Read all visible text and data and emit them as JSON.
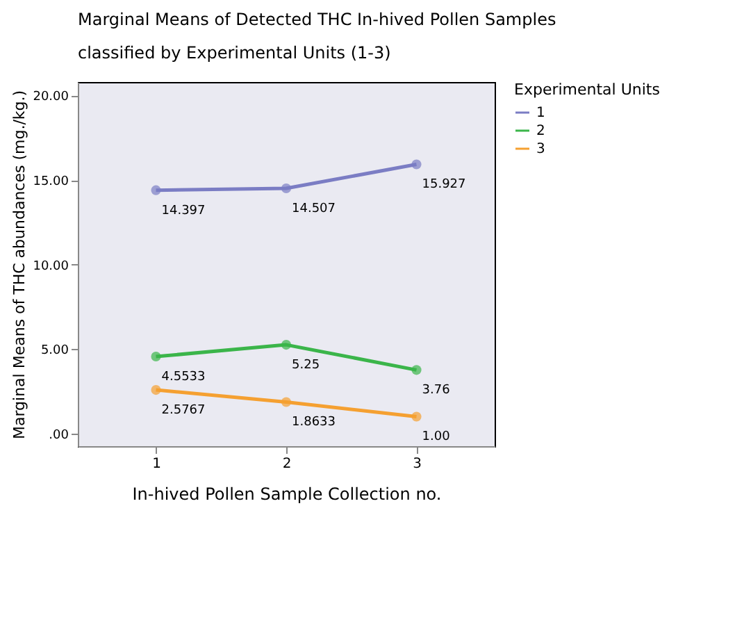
{
  "chart_data": {
    "type": "line",
    "title": "Marginal Means of Detected THC In-hived Pollen Samples\nclassified by Experimental Units (1-3)",
    "xlabel": "In-hived Pollen Sample Collection no.",
    "ylabel": "Marginal Means of THC abundances (mg./kg.)",
    "legend_title": "Experimental Units",
    "categories": [
      "1",
      "2",
      "3"
    ],
    "series": [
      {
        "name": "1",
        "color": "#7b7dc4",
        "values": [
          14.397,
          14.507,
          15.927
        ],
        "value_labels": [
          "14.397",
          "14.507",
          "15.927"
        ]
      },
      {
        "name": "2",
        "color": "#3bb54a",
        "values": [
          4.5533,
          5.25,
          3.76
        ],
        "value_labels": [
          "4.5533",
          "5.25",
          "3.76"
        ]
      },
      {
        "name": "3",
        "color": "#f5a031",
        "values": [
          2.5767,
          1.8633,
          1.0
        ],
        "value_labels": [
          "2.5767",
          "1.8633",
          "1.00"
        ]
      }
    ],
    "ylim": [
      -0.75,
      20.8
    ],
    "yticks": [
      {
        "value": 0,
        "label": ".00"
      },
      {
        "value": 5,
        "label": "5.00"
      },
      {
        "value": 10,
        "label": "10.00"
      },
      {
        "value": 15,
        "label": "15.00"
      },
      {
        "value": 20,
        "label": "20.00"
      }
    ],
    "grid": false,
    "legend": "right",
    "marker": "circle",
    "line_style": "solid"
  }
}
